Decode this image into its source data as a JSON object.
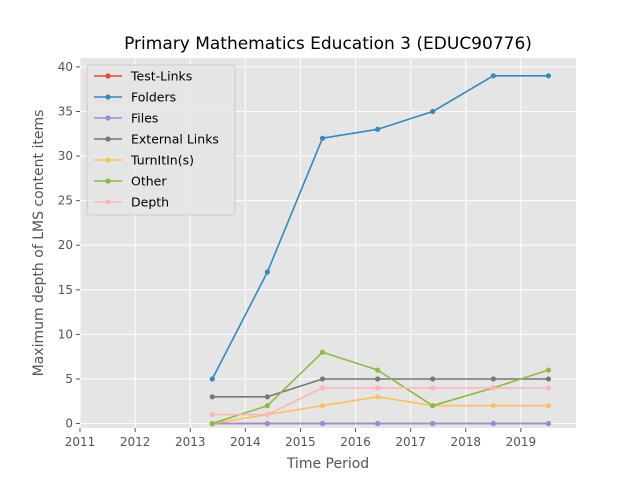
{
  "chart_data": {
    "type": "line",
    "title": "Primary Mathematics Education 3 (EDUC90776)",
    "xlabel": "Time Period",
    "ylabel": "Maximum depth of LMS content items",
    "xlim": [
      2011,
      2020
    ],
    "ylim": [
      -0.5,
      41
    ],
    "x_ticks": [
      2011,
      2012,
      2013,
      2014,
      2015,
      2016,
      2017,
      2018,
      2019
    ],
    "y_ticks": [
      0,
      5,
      10,
      15,
      20,
      25,
      30,
      35,
      40
    ],
    "grid": true,
    "legend_position": "top-left",
    "x": [
      2013.4,
      2014.4,
      2015.4,
      2016.4,
      2017.4,
      2018.5,
      2019.5
    ],
    "series": [
      {
        "name": "Test-Links",
        "color": "#e24a33",
        "values": [
          0,
          0,
          0,
          0,
          0,
          0,
          0
        ]
      },
      {
        "name": "Folders",
        "color": "#348abd",
        "values": [
          5,
          17,
          32,
          33,
          35,
          39,
          39
        ]
      },
      {
        "name": "Files",
        "color": "#988ed5",
        "values": [
          0,
          0,
          0,
          0,
          0,
          0,
          0
        ]
      },
      {
        "name": "External Links",
        "color": "#777777",
        "values": [
          3,
          3,
          5,
          5,
          5,
          5,
          5
        ]
      },
      {
        "name": "TurnItIn(s)",
        "color": "#fbc15e",
        "values": [
          0,
          1,
          2,
          3,
          2,
          2,
          2
        ]
      },
      {
        "name": "Other",
        "color": "#8eba42",
        "values": [
          0,
          2,
          8,
          6,
          2,
          4,
          6
        ]
      },
      {
        "name": "Depth",
        "color": "#ffb5b8",
        "values": [
          1,
          1,
          4,
          4,
          4,
          4,
          4
        ]
      }
    ]
  }
}
